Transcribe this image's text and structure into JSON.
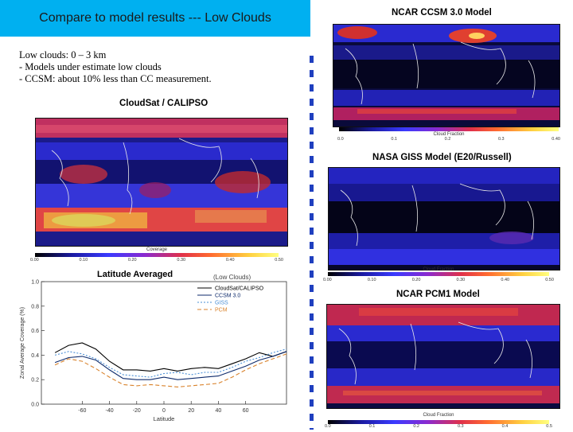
{
  "slide": {
    "title": "Compare to model results --- Low Clouds",
    "notes": [
      "Low clouds: 0 – 3 km",
      "- Models under estimate low clouds",
      "- CCSM: about 10% less than CC measurement."
    ]
  },
  "maps": {
    "cloudsat": {
      "label": "CloudSat / CALIPSO",
      "colorbar_title": "Coverage",
      "colorbar_ticks": [
        "0.00",
        "0.10",
        "0.20",
        "0.30",
        "0.40",
        "0.50"
      ]
    },
    "ccsm": {
      "label": "NCAR CCSM 3.0 Model",
      "colorbar_title": "Cloud Fraction",
      "colorbar_ticks": [
        "0.0",
        "0.1",
        "0.2",
        "0.3",
        "0.40"
      ]
    },
    "giss": {
      "label": "NASA GISS Model   (E20/Russell)",
      "colorbar_title": "Cloud Fraction",
      "colorbar_ticks": [
        "0.00",
        "0.10",
        "0.20",
        "0.30",
        "0.40",
        "0.50"
      ]
    },
    "pcm": {
      "label": "NCAR PCM1 Model",
      "colorbar_title": "Cloud Fraction",
      "colorbar_ticks": [
        "0.0",
        "0.1",
        "0.2",
        "0.3",
        "0.4",
        "0.5"
      ]
    }
  },
  "chart_data": {
    "type": "line",
    "title": "Latitude Averaged",
    "subtitle": "(Low Clouds)",
    "xlabel": "Latitude",
    "ylabel": "Zonal Average Coverage (%)",
    "xlim": [
      -90,
      90
    ],
    "ylim": [
      0.0,
      1.0
    ],
    "xticks": [
      -60,
      -40,
      -20,
      0,
      20,
      40,
      60
    ],
    "yticks": [
      0.0,
      0.2,
      0.4,
      0.6,
      0.8,
      1.0
    ],
    "x": [
      -80,
      -70,
      -60,
      -50,
      -40,
      -30,
      -20,
      -10,
      0,
      10,
      20,
      30,
      40,
      50,
      60,
      70,
      80,
      90
    ],
    "series": [
      {
        "name": "CloudSat/CALIPSO",
        "color": "#000000",
        "dash": "",
        "values": [
          0.42,
          0.48,
          0.5,
          0.45,
          0.35,
          0.28,
          0.28,
          0.27,
          0.29,
          0.27,
          0.29,
          0.3,
          0.29,
          0.33,
          0.37,
          0.42,
          0.39,
          0.43
        ]
      },
      {
        "name": "CCSM 3.0",
        "color": "#0d2a6b",
        "dash": "",
        "values": [
          0.34,
          0.38,
          0.39,
          0.36,
          0.28,
          0.21,
          0.2,
          0.2,
          0.22,
          0.2,
          0.21,
          0.22,
          0.23,
          0.27,
          0.31,
          0.36,
          0.39,
          0.43
        ]
      },
      {
        "name": "GISS",
        "color": "#4a8fd6",
        "dash": "2,2",
        "values": [
          0.4,
          0.43,
          0.41,
          0.37,
          0.3,
          0.24,
          0.23,
          0.22,
          0.25,
          0.26,
          0.24,
          0.26,
          0.26,
          0.3,
          0.35,
          0.38,
          0.42,
          0.45
        ]
      },
      {
        "name": "PCM",
        "color": "#d9822b",
        "dash": "5,3",
        "values": [
          0.32,
          0.37,
          0.35,
          0.29,
          0.22,
          0.16,
          0.15,
          0.16,
          0.15,
          0.14,
          0.15,
          0.16,
          0.17,
          0.22,
          0.28,
          0.33,
          0.37,
          0.41
        ]
      }
    ]
  }
}
